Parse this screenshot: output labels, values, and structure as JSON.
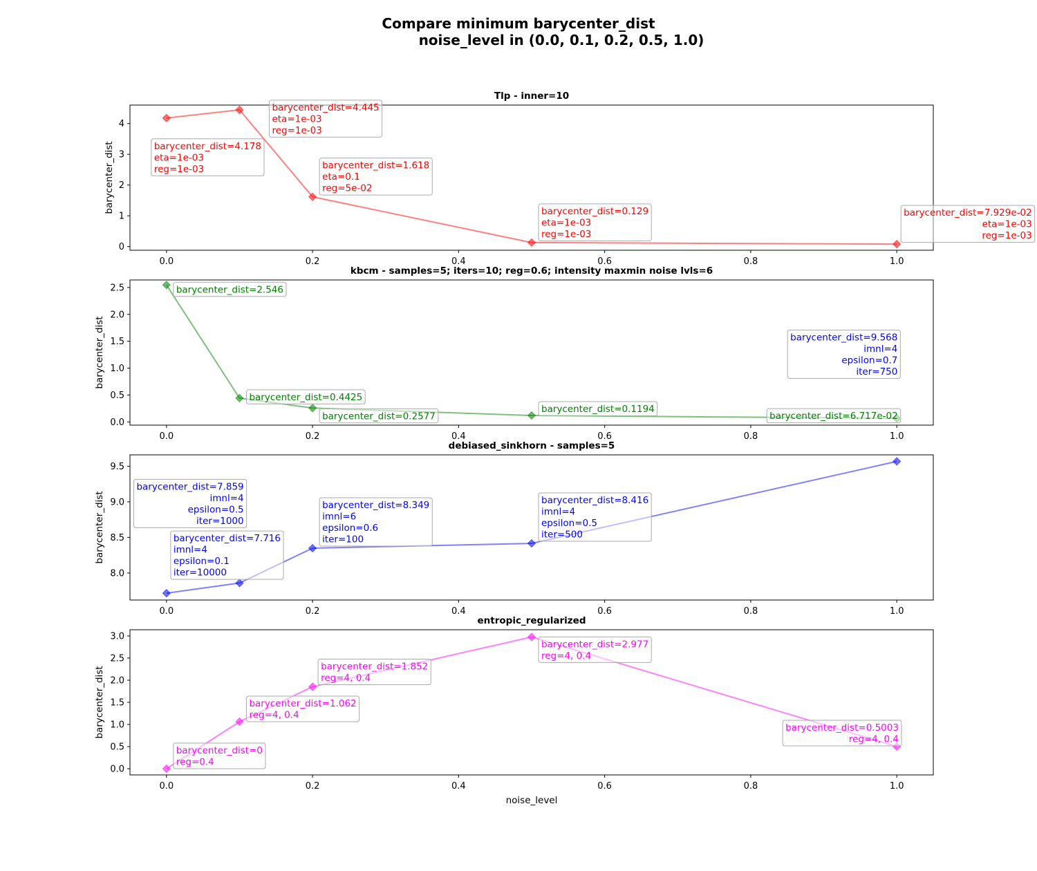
{
  "figure": {
    "title_line1": "Compare minimum barycenter_dist",
    "title_line2": "noise_level in (0.0, 0.1, 0.2, 0.5, 1.0)"
  },
  "chart_data": [
    {
      "type": "line",
      "title": "Tlp - inner=10",
      "xlabel": "",
      "ylabel": "barycenter_dist",
      "color": "#ff0000",
      "x": [
        0.0,
        0.1,
        0.2,
        0.5,
        1.0
      ],
      "values": [
        4.178,
        4.445,
        1.618,
        0.129,
        0.07929
      ],
      "xlim": [
        -0.05,
        1.05
      ],
      "ylim": [
        -0.12,
        4.6
      ],
      "xticks": [
        "0.0",
        "0.2",
        "0.4",
        "0.6",
        "0.8",
        "1.0"
      ],
      "yticks": [
        "0",
        "1",
        "2",
        "3",
        "4"
      ],
      "annotations": [
        {
          "lines": [
            "barycenter_dist=4.178",
            "eta=1e-03",
            "reg=1e-03"
          ],
          "align": "left"
        },
        {
          "lines": [
            "barycenter_dist=4.445",
            "eta=1e-03",
            "reg=1e-03"
          ],
          "align": "left"
        },
        {
          "lines": [
            "barycenter_dist=1.618",
            "eta=0.1",
            "reg=5e-02"
          ],
          "align": "left"
        },
        {
          "lines": [
            "barycenter_dist=0.129",
            "eta=1e-03",
            "reg=1e-03"
          ],
          "align": "left"
        },
        {
          "lines": [
            "barycenter_dist=7.929e-02",
            "eta=1e-03",
            "reg=1e-03"
          ],
          "align": "right"
        }
      ]
    },
    {
      "type": "line",
      "title": "kbcm - samples=5; iters=10; reg=0.6; intensity maxmin noise lvls=6",
      "xlabel": "",
      "ylabel": "barycenter_dist",
      "color": "#008000",
      "x": [
        0.0,
        0.1,
        0.2,
        0.5,
        1.0
      ],
      "values": [
        2.546,
        0.4425,
        0.2577,
        0.1194,
        0.06717
      ],
      "xlim": [
        -0.05,
        1.05
      ],
      "ylim": [
        -0.06,
        2.64
      ],
      "xticks": [
        "0.0",
        "0.2",
        "0.4",
        "0.6",
        "0.8",
        "1.0"
      ],
      "yticks": [
        "0.0",
        "0.5",
        "1.0",
        "1.5",
        "2.0",
        "2.5"
      ],
      "annotations": [
        {
          "lines": [
            "barycenter_dist=2.546"
          ],
          "align": "left"
        },
        {
          "lines": [
            "barycenter_dist=0.4425"
          ],
          "align": "left"
        },
        {
          "lines": [
            "barycenter_dist=0.2577"
          ],
          "align": "left"
        },
        {
          "lines": [
            "barycenter_dist=0.1194"
          ],
          "align": "left"
        },
        {
          "lines": [
            "barycenter_dist=6.717e-02"
          ],
          "align": "left"
        }
      ]
    },
    {
      "type": "line",
      "title": "debiased_sinkhorn - samples=5",
      "xlabel": "",
      "ylabel": "barycenter_dist",
      "color": "#0000ff",
      "x": [
        0.0,
        0.1,
        0.2,
        0.5,
        1.0
      ],
      "values": [
        7.716,
        7.859,
        8.349,
        8.416,
        9.568
      ],
      "xlim": [
        -0.05,
        1.05
      ],
      "ylim": [
        7.62,
        9.66
      ],
      "xticks": [
        "0.0",
        "0.2",
        "0.4",
        "0.6",
        "0.8",
        "1.0"
      ],
      "yticks": [
        "8.0",
        "8.5",
        "9.0",
        "9.5"
      ],
      "annotations": [
        {
          "lines": [
            "barycenter_dist=7.716",
            "imnl=4",
            "epsilon=0.1",
            "iter=10000"
          ],
          "align": "left"
        },
        {
          "lines": [
            "barycenter_dist=7.859",
            "imnl=4",
            "epsilon=0.5",
            "iter=1000"
          ],
          "align": "right"
        },
        {
          "lines": [
            "barycenter_dist=8.349",
            "imnl=6",
            "epsilon=0.6",
            "iter=100"
          ],
          "align": "left"
        },
        {
          "lines": [
            "barycenter_dist=8.416",
            "imnl=4",
            "epsilon=0.5",
            "iter=500"
          ],
          "align": "left"
        },
        {
          "lines": [
            "barycenter_dist=9.568",
            "imnl=4",
            "epsilon=0.7",
            "iter=750"
          ],
          "align": "right"
        }
      ]
    },
    {
      "type": "line",
      "title": "entropic_regularized",
      "xlabel": "noise_level",
      "ylabel": "barycenter_dist",
      "color": "#ff00ff",
      "x": [
        0.0,
        0.1,
        0.2,
        0.5,
        1.0
      ],
      "values": [
        0,
        1.062,
        1.852,
        2.977,
        0.5003
      ],
      "xlim": [
        -0.05,
        1.05
      ],
      "ylim": [
        -0.14,
        3.14
      ],
      "xticks": [
        "0.0",
        "0.2",
        "0.4",
        "0.6",
        "0.8",
        "1.0"
      ],
      "yticks": [
        "0.0",
        "0.5",
        "1.0",
        "1.5",
        "2.0",
        "2.5",
        "3.0"
      ],
      "annotations": [
        {
          "lines": [
            "barycenter_dist=0",
            "reg=0.4"
          ],
          "align": "left"
        },
        {
          "lines": [
            "barycenter_dist=1.062",
            "reg=4, 0.4"
          ],
          "align": "left"
        },
        {
          "lines": [
            "barycenter_dist=1.852",
            "reg=4, 0.4"
          ],
          "align": "left"
        },
        {
          "lines": [
            "barycenter_dist=2.977",
            "reg=4, 0.4"
          ],
          "align": "left"
        },
        {
          "lines": [
            "barycenter_dist=0.5003",
            "reg=4, 0.4"
          ],
          "align": "right"
        }
      ]
    }
  ]
}
